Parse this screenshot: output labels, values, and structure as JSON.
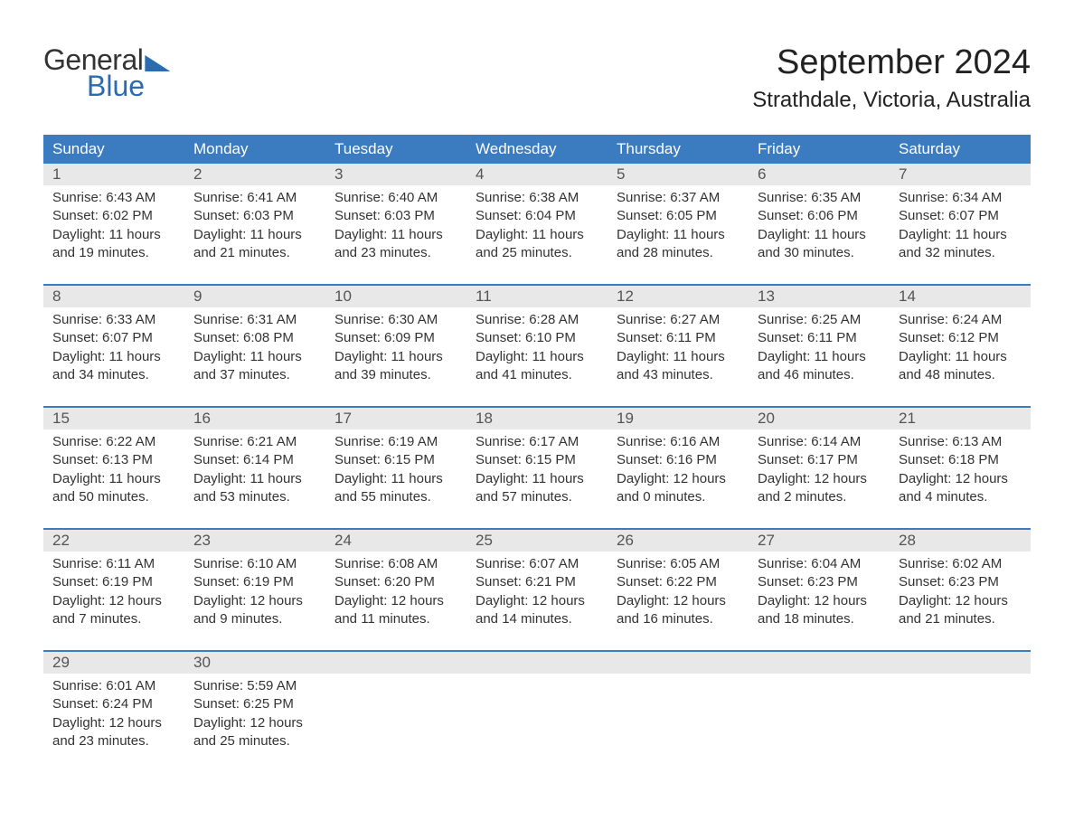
{
  "logo": {
    "text_general": "General",
    "text_blue": "Blue"
  },
  "title": {
    "month_year": "September 2024",
    "location": "Strathdale, Victoria, Australia"
  },
  "colors": {
    "header_bg": "#3b7bbf",
    "header_text": "#ffffff",
    "daynum_bg": "#e8e8e8",
    "border": "#3b7bbf",
    "text": "#333333",
    "logo_blue": "#2b6cb0"
  },
  "weekdays": [
    "Sunday",
    "Monday",
    "Tuesday",
    "Wednesday",
    "Thursday",
    "Friday",
    "Saturday"
  ],
  "weeks": [
    [
      {
        "num": "1",
        "sunrise": "Sunrise: 6:43 AM",
        "sunset": "Sunset: 6:02 PM",
        "daylight": "Daylight: 11 hours and 19 minutes."
      },
      {
        "num": "2",
        "sunrise": "Sunrise: 6:41 AM",
        "sunset": "Sunset: 6:03 PM",
        "daylight": "Daylight: 11 hours and 21 minutes."
      },
      {
        "num": "3",
        "sunrise": "Sunrise: 6:40 AM",
        "sunset": "Sunset: 6:03 PM",
        "daylight": "Daylight: 11 hours and 23 minutes."
      },
      {
        "num": "4",
        "sunrise": "Sunrise: 6:38 AM",
        "sunset": "Sunset: 6:04 PM",
        "daylight": "Daylight: 11 hours and 25 minutes."
      },
      {
        "num": "5",
        "sunrise": "Sunrise: 6:37 AM",
        "sunset": "Sunset: 6:05 PM",
        "daylight": "Daylight: 11 hours and 28 minutes."
      },
      {
        "num": "6",
        "sunrise": "Sunrise: 6:35 AM",
        "sunset": "Sunset: 6:06 PM",
        "daylight": "Daylight: 11 hours and 30 minutes."
      },
      {
        "num": "7",
        "sunrise": "Sunrise: 6:34 AM",
        "sunset": "Sunset: 6:07 PM",
        "daylight": "Daylight: 11 hours and 32 minutes."
      }
    ],
    [
      {
        "num": "8",
        "sunrise": "Sunrise: 6:33 AM",
        "sunset": "Sunset: 6:07 PM",
        "daylight": "Daylight: 11 hours and 34 minutes."
      },
      {
        "num": "9",
        "sunrise": "Sunrise: 6:31 AM",
        "sunset": "Sunset: 6:08 PM",
        "daylight": "Daylight: 11 hours and 37 minutes."
      },
      {
        "num": "10",
        "sunrise": "Sunrise: 6:30 AM",
        "sunset": "Sunset: 6:09 PM",
        "daylight": "Daylight: 11 hours and 39 minutes."
      },
      {
        "num": "11",
        "sunrise": "Sunrise: 6:28 AM",
        "sunset": "Sunset: 6:10 PM",
        "daylight": "Daylight: 11 hours and 41 minutes."
      },
      {
        "num": "12",
        "sunrise": "Sunrise: 6:27 AM",
        "sunset": "Sunset: 6:11 PM",
        "daylight": "Daylight: 11 hours and 43 minutes."
      },
      {
        "num": "13",
        "sunrise": "Sunrise: 6:25 AM",
        "sunset": "Sunset: 6:11 PM",
        "daylight": "Daylight: 11 hours and 46 minutes."
      },
      {
        "num": "14",
        "sunrise": "Sunrise: 6:24 AM",
        "sunset": "Sunset: 6:12 PM",
        "daylight": "Daylight: 11 hours and 48 minutes."
      }
    ],
    [
      {
        "num": "15",
        "sunrise": "Sunrise: 6:22 AM",
        "sunset": "Sunset: 6:13 PM",
        "daylight": "Daylight: 11 hours and 50 minutes."
      },
      {
        "num": "16",
        "sunrise": "Sunrise: 6:21 AM",
        "sunset": "Sunset: 6:14 PM",
        "daylight": "Daylight: 11 hours and 53 minutes."
      },
      {
        "num": "17",
        "sunrise": "Sunrise: 6:19 AM",
        "sunset": "Sunset: 6:15 PM",
        "daylight": "Daylight: 11 hours and 55 minutes."
      },
      {
        "num": "18",
        "sunrise": "Sunrise: 6:17 AM",
        "sunset": "Sunset: 6:15 PM",
        "daylight": "Daylight: 11 hours and 57 minutes."
      },
      {
        "num": "19",
        "sunrise": "Sunrise: 6:16 AM",
        "sunset": "Sunset: 6:16 PM",
        "daylight": "Daylight: 12 hours and 0 minutes."
      },
      {
        "num": "20",
        "sunrise": "Sunrise: 6:14 AM",
        "sunset": "Sunset: 6:17 PM",
        "daylight": "Daylight: 12 hours and 2 minutes."
      },
      {
        "num": "21",
        "sunrise": "Sunrise: 6:13 AM",
        "sunset": "Sunset: 6:18 PM",
        "daylight": "Daylight: 12 hours and 4 minutes."
      }
    ],
    [
      {
        "num": "22",
        "sunrise": "Sunrise: 6:11 AM",
        "sunset": "Sunset: 6:19 PM",
        "daylight": "Daylight: 12 hours and 7 minutes."
      },
      {
        "num": "23",
        "sunrise": "Sunrise: 6:10 AM",
        "sunset": "Sunset: 6:19 PM",
        "daylight": "Daylight: 12 hours and 9 minutes."
      },
      {
        "num": "24",
        "sunrise": "Sunrise: 6:08 AM",
        "sunset": "Sunset: 6:20 PM",
        "daylight": "Daylight: 12 hours and 11 minutes."
      },
      {
        "num": "25",
        "sunrise": "Sunrise: 6:07 AM",
        "sunset": "Sunset: 6:21 PM",
        "daylight": "Daylight: 12 hours and 14 minutes."
      },
      {
        "num": "26",
        "sunrise": "Sunrise: 6:05 AM",
        "sunset": "Sunset: 6:22 PM",
        "daylight": "Daylight: 12 hours and 16 minutes."
      },
      {
        "num": "27",
        "sunrise": "Sunrise: 6:04 AM",
        "sunset": "Sunset: 6:23 PM",
        "daylight": "Daylight: 12 hours and 18 minutes."
      },
      {
        "num": "28",
        "sunrise": "Sunrise: 6:02 AM",
        "sunset": "Sunset: 6:23 PM",
        "daylight": "Daylight: 12 hours and 21 minutes."
      }
    ],
    [
      {
        "num": "29",
        "sunrise": "Sunrise: 6:01 AM",
        "sunset": "Sunset: 6:24 PM",
        "daylight": "Daylight: 12 hours and 23 minutes."
      },
      {
        "num": "30",
        "sunrise": "Sunrise: 5:59 AM",
        "sunset": "Sunset: 6:25 PM",
        "daylight": "Daylight: 12 hours and 25 minutes."
      },
      {
        "num": "",
        "sunrise": "",
        "sunset": "",
        "daylight": ""
      },
      {
        "num": "",
        "sunrise": "",
        "sunset": "",
        "daylight": ""
      },
      {
        "num": "",
        "sunrise": "",
        "sunset": "",
        "daylight": ""
      },
      {
        "num": "",
        "sunrise": "",
        "sunset": "",
        "daylight": ""
      },
      {
        "num": "",
        "sunrise": "",
        "sunset": "",
        "daylight": ""
      }
    ]
  ]
}
